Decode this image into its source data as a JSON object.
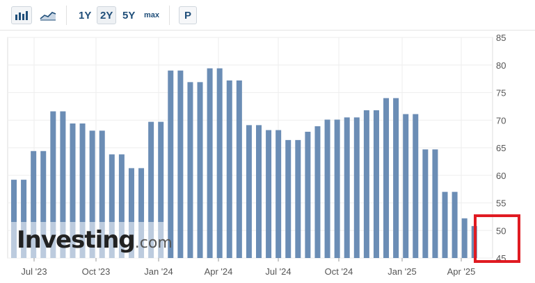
{
  "toolbar": {
    "bar_chart_icon": "bar-chart-icon",
    "area_chart_icon": "area-chart-icon",
    "range_1y": "1Y",
    "range_2y": "2Y",
    "range_5y": "5Y",
    "range_max": "max",
    "p_button": "P"
  },
  "watermark": {
    "brand": "Investing",
    "tld": ".com"
  },
  "colors": {
    "bar": "#6b8db5",
    "highlight": "#e01b22",
    "grid": "#eeeeee",
    "axis_text": "#555555"
  },
  "chart_data": {
    "type": "bar",
    "ylim": [
      45,
      85
    ],
    "y_ticks": [
      45,
      50,
      55,
      60,
      65,
      70,
      75,
      80,
      85
    ],
    "x_ticks": [
      "Jul '23",
      "Oct '23",
      "Jan '24",
      "Apr '24",
      "Jul '24",
      "Oct '24",
      "Jan '25",
      "Apr '25"
    ],
    "grid": true,
    "values": [
      59.2,
      59.2,
      64.4,
      64.4,
      71.6,
      71.6,
      69.4,
      69.4,
      68.1,
      68.1,
      63.8,
      63.8,
      61.3,
      61.3,
      69.7,
      69.7,
      79.0,
      79.0,
      76.9,
      76.9,
      79.4,
      79.4,
      77.2,
      77.2,
      69.1,
      69.1,
      68.2,
      68.2,
      66.4,
      66.4,
      67.9,
      68.9,
      70.1,
      70.1,
      70.5,
      70.5,
      71.8,
      71.8,
      74.0,
      74.0,
      71.1,
      71.1,
      64.7,
      64.7,
      57.0,
      57.0,
      52.2,
      50.8
    ]
  }
}
